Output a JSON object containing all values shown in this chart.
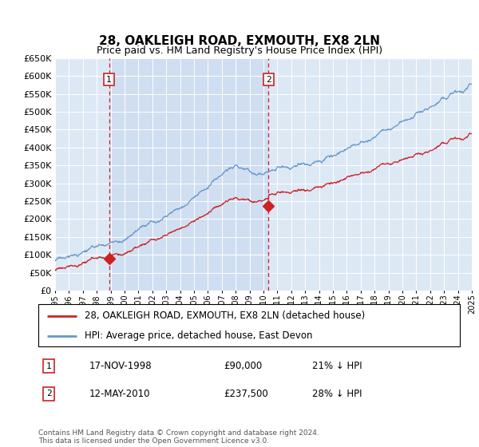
{
  "title": "28, OAKLEIGH ROAD, EXMOUTH, EX8 2LN",
  "subtitle": "Price paid vs. HM Land Registry's House Price Index (HPI)",
  "bg_color": "#dde8f5",
  "hpi_color": "#6699cc",
  "price_color": "#cc2222",
  "dashed_color": "#cc2222",
  "ylim_min": 0,
  "ylim_max": 650000,
  "x_start_year": 1995,
  "x_end_year": 2025,
  "sale1_year": 1998.88,
  "sale1_price": 90000,
  "sale2_year": 2010.37,
  "sale2_price": 237500,
  "legend_label_price": "28, OAKLEIGH ROAD, EXMOUTH, EX8 2LN (detached house)",
  "legend_label_hpi": "HPI: Average price, detached house, East Devon",
  "note1_num": "1",
  "note1_date": "17-NOV-1998",
  "note1_price": "£90,000",
  "note1_pct": "21% ↓ HPI",
  "note2_num": "2",
  "note2_date": "12-MAY-2010",
  "note2_price": "£237,500",
  "note2_pct": "28% ↓ HPI",
  "footer": "Contains HM Land Registry data © Crown copyright and database right 2024.\nThis data is licensed under the Open Government Licence v3.0."
}
